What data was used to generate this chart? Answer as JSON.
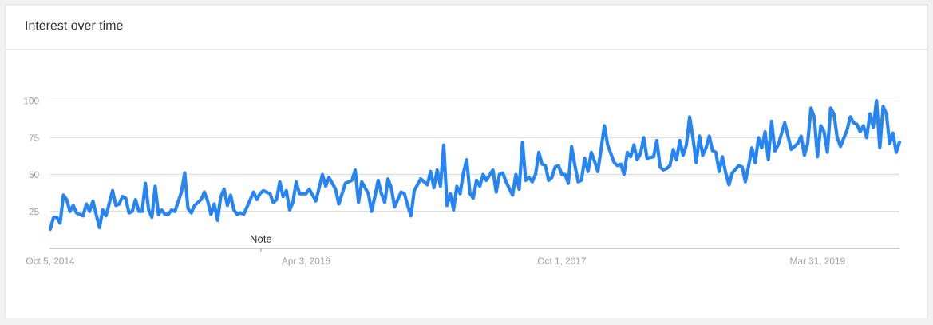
{
  "chart_data": {
    "type": "line",
    "title": "Interest over time",
    "x": [
      "2014-10-05",
      "2014-10-12",
      "2014-10-19",
      "2014-10-26",
      "2014-11-02",
      "2014-11-09",
      "2014-11-16",
      "2014-11-23",
      "2014-11-30",
      "2014-12-14",
      "2014-12-21",
      "2014-12-28",
      "2015-01-04",
      "2015-01-11",
      "2015-01-18",
      "2015-01-25",
      "2015-02-01",
      "2015-02-15",
      "2015-02-22",
      "2015-03-01",
      "2015-03-08",
      "2015-03-15",
      "2015-03-22",
      "2015-03-29",
      "2015-04-05",
      "2015-04-12",
      "2015-04-19",
      "2015-04-26",
      "2015-05-03",
      "2015-05-10",
      "2015-05-17",
      "2015-05-24",
      "2015-05-31",
      "2015-06-07",
      "2015-06-14",
      "2015-06-21",
      "2015-06-28",
      "2015-07-12",
      "2015-07-19",
      "2015-07-26",
      "2015-08-02",
      "2015-08-09",
      "2015-08-23",
      "2015-08-30",
      "2015-09-06",
      "2015-09-13",
      "2015-09-20",
      "2015-09-27",
      "2015-10-04",
      "2015-10-11",
      "2015-10-18",
      "2015-10-25",
      "2015-11-01",
      "2015-11-08",
      "2015-11-15",
      "2015-11-22",
      "2015-12-06",
      "2015-12-13",
      "2015-12-20",
      "2015-12-27",
      "2016-01-03",
      "2016-01-17",
      "2016-01-24",
      "2016-01-31",
      "2016-02-07",
      "2016-02-14",
      "2016-02-21",
      "2016-02-28",
      "2016-03-06",
      "2016-03-13",
      "2016-03-20",
      "2016-04-03",
      "2016-04-10",
      "2016-04-24",
      "2016-05-08",
      "2016-05-15",
      "2016-05-22",
      "2016-06-05",
      "2016-06-12",
      "2016-06-26",
      "2016-07-10",
      "2016-07-17",
      "2016-07-24",
      "2016-07-31",
      "2016-08-14",
      "2016-08-21",
      "2016-08-28",
      "2016-09-04",
      "2016-09-11",
      "2016-09-18",
      "2016-09-25",
      "2016-10-02",
      "2016-10-09",
      "2016-10-23",
      "2016-10-30",
      "2016-11-06",
      "2016-11-13",
      "2016-11-20",
      "2016-12-04",
      "2016-12-18",
      "2016-12-25",
      "2017-01-01",
      "2017-01-08",
      "2017-01-15",
      "2017-01-22",
      "2017-01-29",
      "2017-02-05",
      "2017-02-12",
      "2017-02-19",
      "2017-02-26",
      "2017-03-05",
      "2017-03-12",
      "2017-03-19",
      "2017-03-26",
      "2017-04-02",
      "2017-04-09",
      "2017-04-16",
      "2017-04-23",
      "2017-05-07",
      "2017-05-14",
      "2017-05-21",
      "2017-05-28",
      "2017-06-04",
      "2017-06-18",
      "2017-06-25",
      "2017-07-02",
      "2017-07-09",
      "2017-07-16",
      "2017-07-23",
      "2017-07-30",
      "2017-08-06",
      "2017-08-13",
      "2017-08-20",
      "2017-08-27",
      "2017-09-03",
      "2017-09-10",
      "2017-09-17",
      "2017-09-24",
      "2017-10-01",
      "2017-10-08",
      "2017-10-15",
      "2017-10-22",
      "2017-10-29",
      "2017-11-05",
      "2017-11-12",
      "2017-11-19",
      "2017-11-26",
      "2017-12-03",
      "2017-12-10",
      "2017-12-17",
      "2017-12-31",
      "2018-01-07",
      "2018-01-21",
      "2018-01-28",
      "2018-02-04",
      "2018-02-11",
      "2018-02-18",
      "2018-02-25",
      "2018-03-04",
      "2018-03-11",
      "2018-03-18",
      "2018-03-25",
      "2018-04-01",
      "2018-04-15",
      "2018-04-22",
      "2018-04-29",
      "2018-05-06",
      "2018-05-13",
      "2018-05-20",
      "2018-05-27",
      "2018-06-03",
      "2018-06-10",
      "2018-06-17",
      "2018-06-24",
      "2018-07-01",
      "2018-07-08",
      "2018-07-15",
      "2018-07-22",
      "2018-07-29",
      "2018-08-05",
      "2018-08-12",
      "2018-08-19",
      "2018-08-26",
      "2018-09-02",
      "2018-09-09",
      "2018-09-16",
      "2018-09-23",
      "2018-09-30",
      "2018-10-14",
      "2018-10-21",
      "2018-10-28",
      "2018-11-04",
      "2018-11-11",
      "2018-11-18",
      "2018-11-25",
      "2018-12-02",
      "2018-12-09",
      "2018-12-16",
      "2018-12-23",
      "2018-12-30",
      "2019-01-06",
      "2019-01-20",
      "2019-01-27",
      "2019-02-03",
      "2019-02-17",
      "2019-02-24",
      "2019-03-03",
      "2019-03-10",
      "2019-03-17",
      "2019-03-24",
      "2019-03-31",
      "2019-04-07",
      "2019-04-14",
      "2019-04-21",
      "2019-04-28",
      "2019-05-05",
      "2019-05-12",
      "2019-05-19",
      "2019-06-02",
      "2019-06-09",
      "2019-06-16",
      "2019-06-23",
      "2019-06-30",
      "2019-07-07",
      "2019-07-14",
      "2019-07-21",
      "2019-07-28",
      "2019-08-04",
      "2019-08-11",
      "2019-08-18",
      "2019-08-25",
      "2019-09-01",
      "2019-09-08",
      "2019-09-15",
      "2019-09-22"
    ],
    "series": [
      {
        "color": "#2684f5",
        "values": [
          13,
          21,
          21,
          17,
          36,
          33,
          25,
          29,
          24,
          22,
          30,
          25,
          32,
          23,
          14,
          26,
          22,
          39,
          29,
          30,
          35,
          34,
          24,
          25,
          33,
          25,
          25,
          44,
          26,
          21,
          42,
          23,
          26,
          23,
          23,
          26,
          25,
          38,
          51,
          27,
          24,
          29,
          33,
          38,
          32,
          23,
          30,
          19,
          35,
          40,
          29,
          36,
          26,
          23,
          24,
          23,
          33,
          38,
          33,
          37,
          39,
          37,
          31,
          33,
          45,
          35,
          39,
          26,
          31,
          45,
          37,
          37,
          40,
          32,
          50,
          42,
          48,
          40,
          30,
          44,
          46,
          53,
          31,
          45,
          37,
          25,
          35,
          46,
          37,
          31,
          47,
          41,
          28,
          38,
          37,
          29,
          22,
          39,
          47,
          43,
          52,
          41,
          53,
          42,
          70,
          29,
          37,
          26,
          42,
          37,
          51,
          60,
          37,
          34,
          46,
          42,
          50,
          46,
          53,
          38,
          50,
          51,
          45,
          36,
          50,
          40,
          72,
          46,
          48,
          45,
          50,
          65,
          57,
          56,
          46,
          48,
          55,
          56,
          50,
          50,
          44,
          69,
          56,
          45,
          46,
          61,
          52,
          65,
          59,
          52,
          83,
          70,
          58,
          56,
          57,
          50,
          65,
          62,
          70,
          60,
          64,
          75,
          61,
          62,
          73,
          55,
          53,
          54,
          56,
          67,
          60,
          73,
          63,
          70,
          89,
          75,
          58,
          76,
          63,
          68,
          76,
          66,
          65,
          52,
          62,
          51,
          43,
          51,
          56,
          55,
          45,
          56,
          68,
          58,
          75,
          68,
          79,
          60,
          86,
          66,
          70,
          85,
          76,
          67,
          71,
          76,
          63,
          71,
          95,
          89,
          62,
          83,
          79,
          65,
          95,
          91,
          75,
          69,
          80,
          89,
          85,
          84,
          79,
          83,
          75,
          91,
          82,
          100,
          68,
          96,
          91,
          71,
          78,
          65,
          72
        ]
      }
    ],
    "xlim": [
      "2014-10-05",
      "2019-09-22"
    ],
    "xticks": [
      {
        "value": "2014-10-05",
        "label": "Oct 5, 2014"
      },
      {
        "value": "2016-04-03",
        "label": "Apr 3, 2016"
      },
      {
        "value": "2017-10-01",
        "label": "Oct 1, 2017"
      },
      {
        "value": "2019-03-31",
        "label": "Mar 31, 2019"
      }
    ],
    "ylim": [
      0,
      100
    ],
    "yticks": [
      25,
      50,
      75,
      100
    ],
    "grid": "y",
    "marker": "none",
    "line_style": "solid",
    "annotations": [
      "Note"
    ]
  }
}
